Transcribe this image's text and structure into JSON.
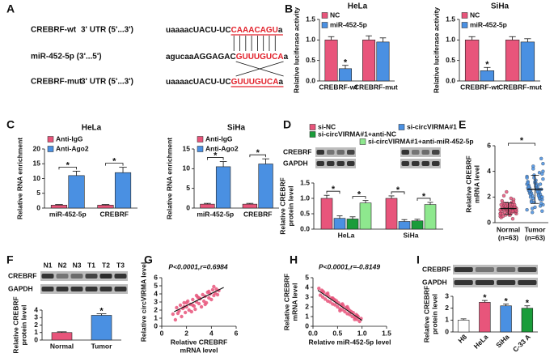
{
  "sequence_panel": {
    "panel": "A",
    "rows": [
      {
        "name": "CREBRF-wt",
        "region": "3' UTR (5'...3')",
        "seq": "uaaaacUACU-UC",
        "site": "CAAACAGU",
        "tail": "a"
      },
      {
        "name": "miR-452-5p (3'...5')",
        "seq": "agucaaAGGAGAC",
        "site": "GUUUGUCA",
        "tail": "a"
      },
      {
        "name": "CREBRF-mut",
        "region": "3' UTR (5'...3')",
        "seq": "uaaaacUACU-UC",
        "site": "GUUUGUCA",
        "tail": "a"
      }
    ]
  },
  "chart_data": [
    {
      "type": "bar",
      "panel": "B",
      "title": "HeLa",
      "ylabel": [
        "Relative luciferase activity"
      ],
      "categories": [
        "CREBRF-wt",
        "CREBRF-mut"
      ],
      "series": [
        {
          "name": "NC",
          "color": "#e8557b",
          "values": [
            1.0,
            1.0
          ],
          "errors": [
            0.08,
            0.1
          ]
        },
        {
          "name": "miR-452-5p",
          "color": "#4a90e2",
          "values": [
            0.3,
            0.95
          ],
          "errors": [
            0.08,
            0.1
          ],
          "stars": [
            "*",
            null
          ]
        }
      ],
      "ylim": [
        0,
        1.5
      ],
      "yticks": [
        {
          "value": 0,
          "label": "0.0"
        },
        0.5,
        {
          "value": 1,
          "label": "1.0"
        },
        1.5
      ]
    },
    {
      "type": "bar",
      "title": "SiHa",
      "ylabel": [
        "Relative luciferase activity"
      ],
      "categories": [
        "CREBRF-wt",
        "CREBRF-mut"
      ],
      "series": [
        {
          "name": "NC",
          "color": "#e8557b",
          "values": [
            1.0,
            1.0
          ],
          "errors": [
            0.08,
            0.08
          ]
        },
        {
          "name": "miR-452-5p",
          "color": "#4a90e2",
          "values": [
            0.25,
            0.95
          ],
          "errors": [
            0.08,
            0.08
          ],
          "stars": [
            "*",
            null
          ]
        }
      ],
      "ylim": [
        0,
        1.5
      ],
      "yticks": [
        {
          "value": 0,
          "label": "0.0"
        },
        0.5,
        {
          "value": 1,
          "label": "1.0"
        },
        1.5
      ]
    },
    {
      "type": "bar",
      "panel": "C",
      "title": "HeLa",
      "ylabel": [
        "Relative RNA enrichment"
      ],
      "categories": [
        "miR-452-5p",
        "CREBRF"
      ],
      "series": [
        {
          "name": "Anti-IgG",
          "color": "#e8557b",
          "values": [
            1.0,
            1.0
          ],
          "errors": [
            0.2,
            0.2
          ]
        },
        {
          "name": "Anti-Ago2",
          "color": "#4a90e2",
          "values": [
            11,
            12
          ],
          "errors": [
            1.5,
            1.8
          ]
        }
      ],
      "comparisons": [
        {
          "series": [
            0,
            1
          ],
          "labels": [
            "*",
            "*"
          ]
        }
      ],
      "ylim": [
        0,
        20
      ],
      "yticks": [
        0,
        5,
        10,
        15,
        20
      ]
    },
    {
      "type": "bar",
      "title": "SiHa",
      "ylabel": [
        "Relative RNA enrichment"
      ],
      "categories": [
        "miR-452-5p",
        "CREBRF"
      ],
      "series": [
        {
          "name": "Anti-IgG",
          "color": "#e8557b",
          "values": [
            1.0,
            1.0
          ],
          "errors": [
            0.2,
            0.2
          ]
        },
        {
          "name": "Anti-Ago2",
          "color": "#4a90e2",
          "values": [
            10.5,
            11.2
          ],
          "errors": [
            1.3,
            1.3
          ]
        }
      ],
      "comparisons": [
        {
          "series": [
            0,
            1
          ],
          "labels": [
            "*",
            "*"
          ]
        }
      ],
      "ylim": [
        0,
        15
      ],
      "yticks": [
        0,
        5,
        10,
        15
      ]
    },
    {
      "type": "bar",
      "panel": "D",
      "ylabel": [
        "Relative CREBRF",
        "protein level"
      ],
      "blot": {
        "rows": [
          "CREBRF",
          "GAPDH"
        ]
      },
      "categories": [
        "HeLa",
        "SiHa"
      ],
      "series": [
        {
          "name": "si-NC",
          "color": "#e8557b",
          "values": [
            1.0,
            1.0
          ],
          "errors": [
            0.1,
            0.08
          ]
        },
        {
          "name": "si-circVIRMA#1",
          "color": "#4a90e2",
          "values": [
            0.35,
            0.25
          ],
          "errors": [
            0.08,
            0.06
          ]
        },
        {
          "name": "si-circVIRMA#1+anti-NC",
          "color": "#1a9c3a",
          "values": [
            0.33,
            0.27
          ],
          "errors": [
            0.07,
            0.05
          ]
        },
        {
          "name": "si-circVIRMA#1+anti-miR-452-5p",
          "color": "#8ee88e",
          "values": [
            0.85,
            0.8
          ],
          "errors": [
            0.08,
            0.07
          ]
        }
      ],
      "comparisons": [
        {
          "series": [
            0,
            1
          ],
          "labels": [
            "*",
            "*"
          ]
        },
        {
          "series": [
            2,
            3
          ],
          "labels": [
            "*",
            "*"
          ]
        }
      ],
      "ylim": [
        0,
        1.5
      ],
      "yticks": [
        {
          "value": 0,
          "label": "0.0"
        },
        0.5,
        {
          "value": 1,
          "label": "1.0"
        },
        1.5
      ]
    },
    {
      "type": "dot",
      "panel": "E",
      "ylabel": [
        "Relative CREBRF",
        "mRNA level"
      ],
      "groups": [
        {
          "name": "Normal",
          "n_label": "(n=63)",
          "color": "#e8557b",
          "mean": 1.1,
          "sd": 0.45,
          "values": [
            0.5,
            0.7,
            0.8,
            0.9,
            1.0,
            1.1,
            1.2,
            1.3,
            1.4,
            0.6,
            0.8,
            0.9,
            1.0,
            1.1,
            1.2,
            1.3,
            1.5,
            1.7,
            0.4,
            0.7,
            0.9,
            1.0,
            1.1,
            1.2,
            1.4,
            1.6,
            1.9,
            0.6,
            0.8,
            1.0,
            1.1,
            1.2,
            1.3,
            1.5,
            2.1,
            0.5,
            0.7,
            0.9,
            1.0,
            1.1,
            1.2,
            1.4,
            1.8,
            0.3,
            0.8,
            0.9,
            1.0,
            1.1,
            1.3,
            1.5,
            2.4,
            0.6,
            0.8,
            1.0,
            1.1,
            1.2,
            1.4,
            0.7,
            0.9,
            1.0,
            1.2,
            1.6,
            0.9
          ]
        },
        {
          "name": "Tumor",
          "n_label": "(n=63)",
          "color": "#4a90e2",
          "mean": 2.6,
          "sd": 1.1,
          "values": [
            1.0,
            1.4,
            1.8,
            2.0,
            2.2,
            2.4,
            2.6,
            2.8,
            3.0,
            3.3,
            1.2,
            1.6,
            1.9,
            2.1,
            2.3,
            2.5,
            2.7,
            2.9,
            3.2,
            3.6,
            4.0,
            0.9,
            1.5,
            1.8,
            2.0,
            2.2,
            2.4,
            2.6,
            2.8,
            3.1,
            3.5,
            4.4,
            1.1,
            1.7,
            2.0,
            2.3,
            2.5,
            2.7,
            3.0,
            3.4,
            3.8,
            5.0,
            1.3,
            1.9,
            2.1,
            2.4,
            2.6,
            2.9,
            3.2,
            3.7,
            4.2,
            0.8,
            1.6,
            2.2,
            2.5,
            2.8,
            3.1,
            3.5,
            4.6,
            2.0,
            2.6,
            3.0,
            3.9
          ]
        }
      ],
      "comparison": {
        "label": "*"
      },
      "ylim": [
        0,
        6
      ],
      "yticks": [
        0,
        2,
        4,
        6
      ]
    },
    {
      "type": "bar",
      "panel": "F",
      "ylabel": [
        "Relative CREBRF",
        "protein level"
      ],
      "blot": {
        "rows": [
          "CREBRF",
          "GAPDH"
        ],
        "lanes": [
          "N1",
          "N2",
          "N3",
          "T1",
          "T2",
          "T3"
        ]
      },
      "categories": [
        "Normal",
        "Tumor"
      ],
      "values": [
        1.0,
        3.3
      ],
      "errors": [
        0.1,
        0.2
      ],
      "colors": [
        "#e8557b",
        "#4a90e2"
      ],
      "stars": [
        null,
        "*"
      ],
      "ylim": [
        0,
        4
      ],
      "yticks": [
        0,
        1,
        2,
        3,
        4
      ]
    },
    {
      "type": "scatter",
      "panel": "G",
      "title": "P<0.0001,r=0.6984",
      "xlabel": [
        "Relative CREBRF",
        "mRNA level"
      ],
      "ylabel": [
        "Relative circVIRMA level"
      ],
      "color": "#e8557b",
      "x": [
        0.9,
        1.1,
        1.2,
        1.4,
        1.5,
        1.6,
        1.7,
        1.8,
        1.9,
        2.0,
        2.1,
        2.2,
        2.3,
        2.4,
        2.5,
        2.6,
        2.7,
        2.8,
        2.9,
        3.0,
        3.1,
        3.2,
        3.3,
        3.4,
        3.5,
        3.6,
        3.7,
        3.8,
        3.9,
        4.0,
        4.1,
        4.2,
        4.3,
        4.4,
        4.5,
        4.6,
        1.3,
        2.0,
        2.8,
        3.5,
        4.2,
        1.8,
        3.0,
        2.5,
        3.8
      ],
      "y": [
        1.5,
        0.8,
        2.3,
        1.9,
        2.6,
        1.2,
        2.2,
        2.9,
        1.7,
        2.4,
        3.1,
        2.0,
        2.7,
        1.8,
        3.3,
        2.5,
        2.1,
        3.0,
        3.6,
        2.8,
        3.4,
        2.4,
        3.9,
        3.1,
        3.7,
        2.9,
        4.2,
        3.5,
        4.0,
        3.3,
        4.5,
        3.8,
        4.1,
        4.6,
        3.9,
        4.4,
        1.6,
        2.9,
        3.8,
        2.7,
        4.9,
        2.4,
        3.5,
        2.6,
        4.3
      ],
      "fit_line": {
        "x": [
          1,
          5
        ],
        "y": [
          1.8,
          4.8
        ]
      },
      "xlim": [
        0,
        6
      ],
      "xticks": [
        0,
        2,
        4,
        6
      ],
      "ylim": [
        0,
        6
      ],
      "yticks": [
        0,
        1,
        2,
        3,
        4,
        5,
        6
      ]
    },
    {
      "type": "scatter",
      "panel": "H",
      "title": "P<0.0001,r=-0.8149",
      "xlabel": [
        "Relative miR-452-5p level"
      ],
      "ylabel": [
        "Relative CREBRF",
        "mRNA level"
      ],
      "color": "#e8557b",
      "x": [
        0.12,
        0.15,
        0.18,
        0.2,
        0.22,
        0.25,
        0.28,
        0.3,
        0.32,
        0.35,
        0.38,
        0.4,
        0.42,
        0.45,
        0.48,
        0.5,
        0.52,
        0.55,
        0.58,
        0.6,
        0.62,
        0.65,
        0.68,
        0.7,
        0.72,
        0.75,
        0.78,
        0.8,
        0.82,
        0.85,
        0.88,
        0.9,
        0.92,
        0.95,
        0.98,
        0.3,
        0.45,
        0.6,
        0.75,
        0.9,
        0.2,
        0.55,
        0.7,
        0.85,
        0.4
      ],
      "y": [
        3.9,
        3.2,
        3.7,
        3.0,
        3.5,
        2.8,
        3.3,
        2.6,
        3.1,
        2.5,
        2.9,
        2.3,
        2.8,
        2.2,
        2.6,
        2.0,
        2.4,
        1.8,
        2.2,
        1.7,
        2.1,
        1.5,
        1.9,
        1.3,
        1.8,
        1.2,
        1.5,
        1.0,
        1.4,
        0.9,
        1.2,
        0.7,
        1.0,
        0.5,
        0.8,
        3.4,
        2.7,
        2.3,
        1.6,
        1.1,
        3.6,
        1.6,
        2.0,
        0.7,
        2.9
      ],
      "fit_line": {
        "x": [
          0.1,
          1.0
        ],
        "y": [
          3.7,
          0.6
        ]
      },
      "xlim": [
        0,
        1.5
      ],
      "xticks": [
        {
          "value": 0,
          "label": "0.0"
        },
        0.5,
        {
          "value": 1,
          "label": "1.0"
        },
        1.5
      ],
      "ylim": [
        0,
        5
      ],
      "yticks": [
        0,
        1,
        2,
        3,
        4,
        5
      ]
    },
    {
      "type": "bar",
      "panel": "I",
      "ylabel": [
        "Relative CREBRF",
        "protein level"
      ],
      "blot": {
        "rows": [
          "CREBRF",
          "GAPDH"
        ]
      },
      "categories": [
        "H8",
        "HeLa",
        "SiHa",
        "C-33 A"
      ],
      "values": [
        1.0,
        2.5,
        2.2,
        2.0
      ],
      "errors": [
        0.1,
        0.15,
        0.15,
        0.2
      ],
      "colors": [
        "#ffffff",
        "#e8557b",
        "#4a90e2",
        "#1a9c3a"
      ],
      "stars": [
        null,
        "*",
        "*",
        "*"
      ],
      "ylim": [
        0,
        3
      ],
      "yticks": [
        0,
        1,
        2,
        3
      ]
    }
  ]
}
